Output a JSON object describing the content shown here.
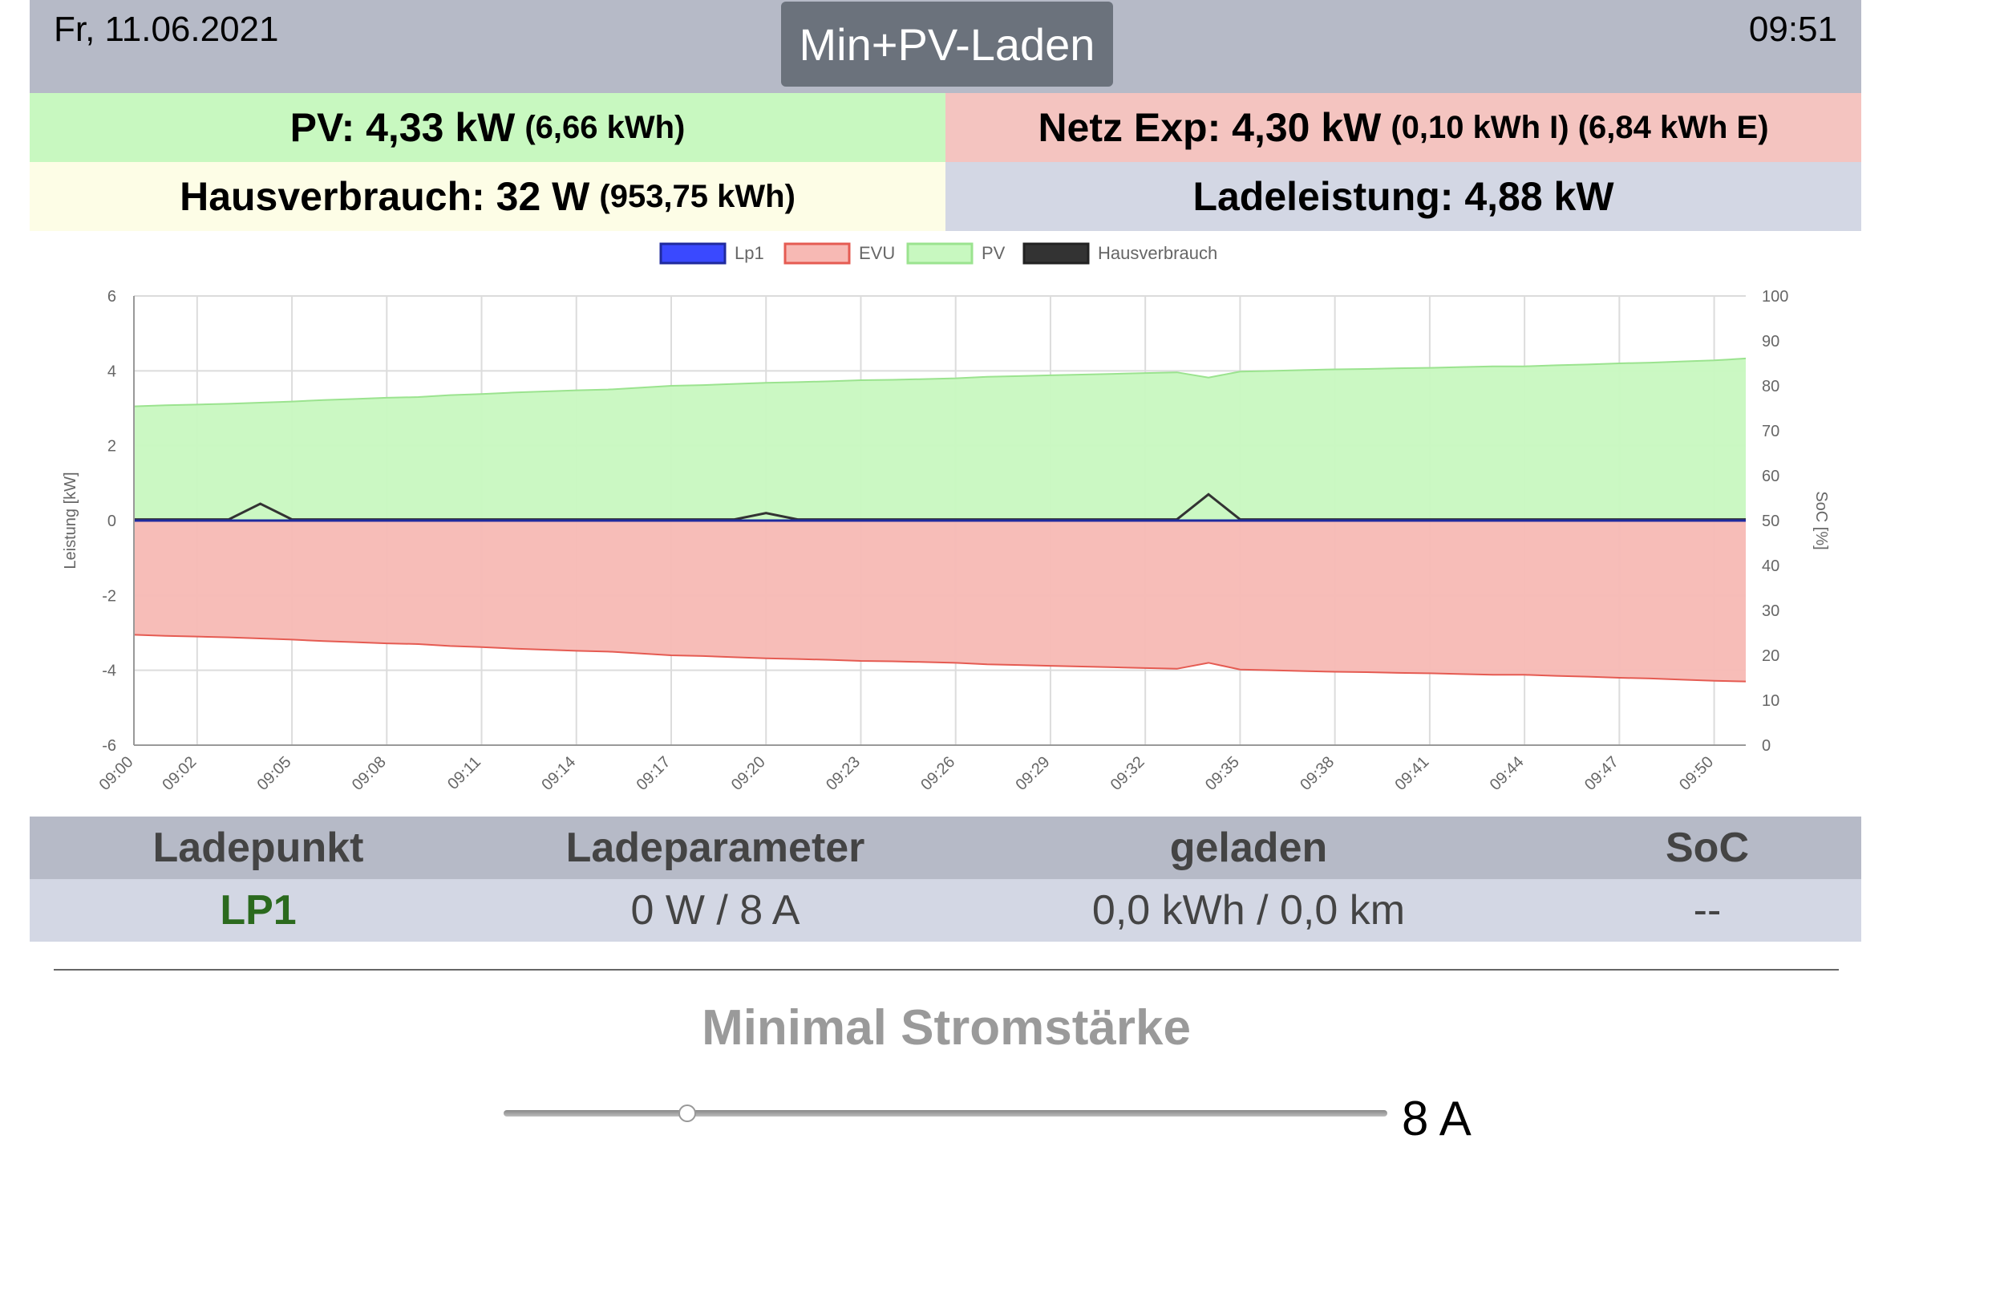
{
  "header": {
    "date": "Fr, 11.06.2021",
    "time": "09:51",
    "mode_label": "Min+PV-Laden"
  },
  "stats": {
    "pv_main": "PV: 4,33 kW",
    "pv_sub": "(6,66 kWh)",
    "netz_main": "Netz Exp: 4,30 kW",
    "netz_sub": "(0,10 kWh I) (6,84 kWh E)",
    "haus_main": "Hausverbrauch: 32 W",
    "haus_sub": "(953,75 kWh)",
    "lade_main": "Ladeleistung: 4,88 kW"
  },
  "chart_data": {
    "type": "area",
    "x": [
      "09:00",
      "09:01",
      "09:02",
      "09:03",
      "09:04",
      "09:05",
      "09:06",
      "09:07",
      "09:08",
      "09:09",
      "09:10",
      "09:11",
      "09:12",
      "09:13",
      "09:14",
      "09:15",
      "09:16",
      "09:17",
      "09:18",
      "09:19",
      "09:20",
      "09:21",
      "09:22",
      "09:23",
      "09:24",
      "09:25",
      "09:26",
      "09:27",
      "09:28",
      "09:29",
      "09:30",
      "09:31",
      "09:32",
      "09:33",
      "09:34",
      "09:35",
      "09:36",
      "09:37",
      "09:38",
      "09:39",
      "09:40",
      "09:41",
      "09:42",
      "09:43",
      "09:44",
      "09:45",
      "09:46",
      "09:47",
      "09:48",
      "09:49",
      "09:50",
      "09:51"
    ],
    "x_tick_labels": [
      "09:00",
      "09:02",
      "09:05",
      "09:08",
      "09:11",
      "09:14",
      "09:17",
      "09:20",
      "09:23",
      "09:26",
      "09:29",
      "09:32",
      "09:35",
      "09:38",
      "09:41",
      "09:44",
      "09:47",
      "09:50"
    ],
    "series": [
      {
        "name": "Lp1",
        "color": "#3a49ff",
        "values": [
          0,
          0,
          0,
          0,
          0,
          0,
          0,
          0,
          0,
          0,
          0,
          0,
          0,
          0,
          0,
          0,
          0,
          0,
          0,
          0,
          0,
          0,
          0,
          0,
          0,
          0,
          0,
          0,
          0,
          0,
          0,
          0,
          0,
          0,
          0,
          0,
          0,
          0,
          0,
          0,
          0,
          0,
          0,
          0,
          0,
          0,
          0,
          0,
          0,
          0,
          0,
          0
        ]
      },
      {
        "name": "EVU",
        "color": "#f7b9b4",
        "values": [
          -3.05,
          -3.08,
          -3.1,
          -3.12,
          -3.15,
          -3.18,
          -3.22,
          -3.25,
          -3.28,
          -3.3,
          -3.35,
          -3.38,
          -3.42,
          -3.45,
          -3.48,
          -3.5,
          -3.55,
          -3.6,
          -3.62,
          -3.65,
          -3.68,
          -3.7,
          -3.72,
          -3.75,
          -3.76,
          -3.78,
          -3.8,
          -3.84,
          -3.86,
          -3.88,
          -3.9,
          -3.92,
          -3.94,
          -3.96,
          -3.8,
          -3.98,
          -4.0,
          -4.02,
          -4.04,
          -4.05,
          -4.07,
          -4.08,
          -4.1,
          -4.12,
          -4.12,
          -4.15,
          -4.17,
          -4.2,
          -4.22,
          -4.25,
          -4.28,
          -4.3
        ]
      },
      {
        "name": "PV",
        "color": "#c8f8c0",
        "values": [
          3.05,
          3.08,
          3.1,
          3.12,
          3.15,
          3.18,
          3.22,
          3.25,
          3.28,
          3.3,
          3.35,
          3.38,
          3.42,
          3.45,
          3.48,
          3.5,
          3.55,
          3.6,
          3.62,
          3.65,
          3.68,
          3.7,
          3.72,
          3.75,
          3.76,
          3.78,
          3.8,
          3.84,
          3.86,
          3.88,
          3.9,
          3.92,
          3.94,
          3.96,
          3.82,
          3.98,
          4.0,
          4.02,
          4.04,
          4.05,
          4.07,
          4.08,
          4.1,
          4.12,
          4.12,
          4.15,
          4.17,
          4.2,
          4.22,
          4.25,
          4.28,
          4.33
        ]
      },
      {
        "name": "Hausverbrauch",
        "color": "#333333",
        "values": [
          0.03,
          0.03,
          0.03,
          0.03,
          0.45,
          0.03,
          0.03,
          0.03,
          0.03,
          0.03,
          0.03,
          0.03,
          0.03,
          0.03,
          0.03,
          0.03,
          0.03,
          0.03,
          0.03,
          0.03,
          0.2,
          0.03,
          0.03,
          0.03,
          0.03,
          0.03,
          0.03,
          0.03,
          0.03,
          0.03,
          0.03,
          0.03,
          0.03,
          0.03,
          0.7,
          0.03,
          0.03,
          0.03,
          0.03,
          0.03,
          0.03,
          0.03,
          0.03,
          0.03,
          0.03,
          0.03,
          0.03,
          0.03,
          0.03,
          0.03,
          0.03,
          0.03
        ]
      }
    ],
    "ylabel": "Leistung [kW]",
    "ylim": [
      -6,
      6
    ],
    "y_ticks": [
      6,
      4,
      2,
      0,
      -2,
      -4,
      -6
    ],
    "y2label": "SoC [%]",
    "y2lim": [
      0,
      100
    ],
    "y2_ticks": [
      100,
      90,
      80,
      70,
      60,
      50,
      40,
      30,
      20,
      10,
      0
    ],
    "grid": true,
    "legend": "top"
  },
  "table": {
    "headers": [
      "Ladepunkt",
      "Ladeparameter",
      "geladen",
      "SoC"
    ],
    "row": {
      "lp": "LP1",
      "param": "0 W / 8 A",
      "geladen": "0,0 kWh / 0,0 km",
      "soc": "--"
    }
  },
  "slider": {
    "title": "Minimal Stromstärke",
    "value_label": "8 A",
    "value": 8,
    "min": 6,
    "max": 32
  }
}
